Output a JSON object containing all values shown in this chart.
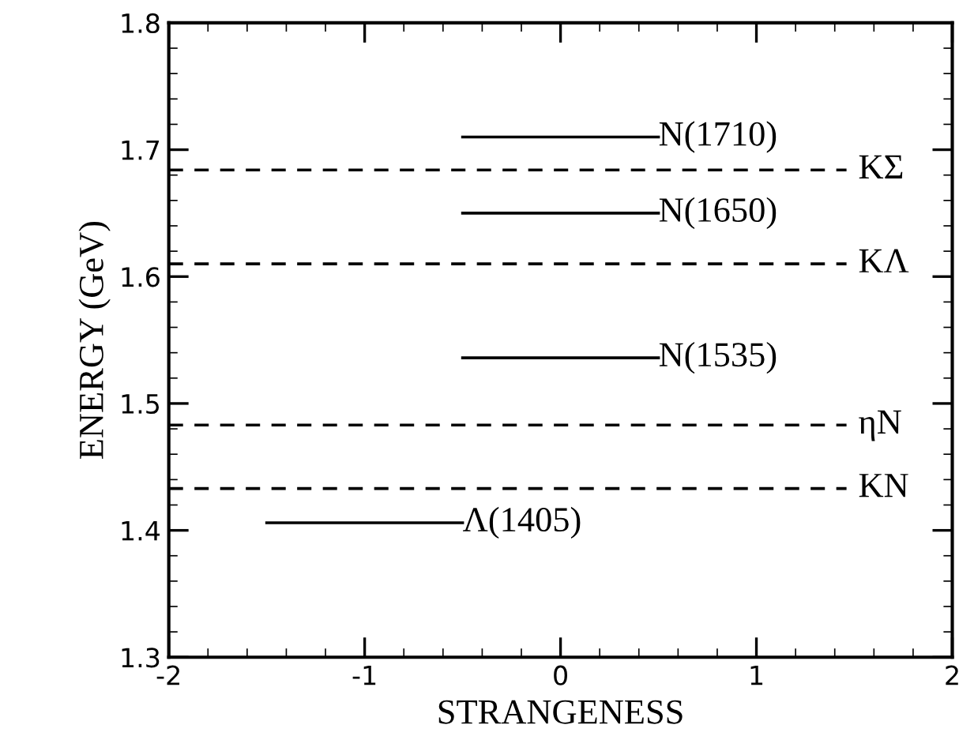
{
  "chart_data": {
    "type": "line",
    "xlabel": "STRANGENESS",
    "ylabel": "ENERGY (GeV)",
    "xlim": [
      -2,
      2
    ],
    "xticks": [
      -2,
      -1,
      0,
      1,
      2
    ],
    "ylim": [
      1.3,
      1.8
    ],
    "yticks": [
      1.3,
      1.4,
      1.5,
      1.6,
      1.7,
      1.8
    ],
    "marker": "none",
    "line_style": "solid",
    "series": [
      {
        "name": "N(1710)",
        "color": "#000000",
        "x": [
          -0.5,
          0.5
        ],
        "values": [
          1.71,
          1.71
        ]
      },
      {
        "name": "N(1650)",
        "color": "#000000",
        "x": [
          -0.5,
          0.5
        ],
        "values": [
          1.65,
          1.65
        ]
      },
      {
        "name": "N(1535)",
        "color": "#000000",
        "x": [
          -0.5,
          0.5
        ],
        "values": [
          1.536,
          1.536
        ]
      },
      {
        "name": "Λ(1405)",
        "color": "#000000",
        "x": [
          -1.5,
          -0.5
        ],
        "values": [
          1.406,
          1.406
        ]
      }
    ],
    "ref_lines": [
      {
        "axis": "y",
        "value": 1.684,
        "label": "KΣ",
        "color": "#000000",
        "line_style": "dashed"
      },
      {
        "axis": "y",
        "value": 1.61,
        "label": "KΛ",
        "color": "#000000",
        "line_style": "dashed"
      },
      {
        "axis": "y",
        "value": 1.483,
        "label": "ηN",
        "color": "#000000",
        "line_style": "dashed"
      },
      {
        "axis": "y",
        "value": 1.433,
        "label": "KN",
        "color": "#000000",
        "line_style": "dashed"
      }
    ]
  }
}
